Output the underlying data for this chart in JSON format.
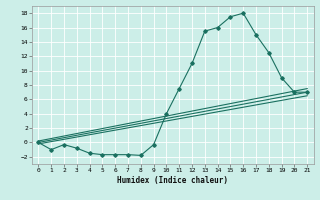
{
  "xlabel": "Humidex (Indice chaleur)",
  "bg_color": "#cceee8",
  "grid_color": "#ffffff",
  "line_color": "#1a7060",
  "xlim": [
    -0.5,
    21.5
  ],
  "ylim": [
    -3,
    19
  ],
  "xticks": [
    0,
    1,
    2,
    3,
    4,
    5,
    6,
    7,
    8,
    9,
    10,
    11,
    12,
    13,
    14,
    15,
    16,
    17,
    18,
    19,
    20,
    21
  ],
  "yticks": [
    -2,
    0,
    2,
    4,
    6,
    8,
    10,
    12,
    14,
    16,
    18
  ],
  "humidex_x": [
    0,
    1,
    2,
    3,
    4,
    5,
    6,
    7,
    8,
    9,
    10,
    11,
    12,
    13,
    14,
    15,
    16,
    17,
    18,
    19,
    20,
    21
  ],
  "humidex_y": [
    0,
    -1,
    -0.3,
    -0.8,
    -1.5,
    -1.7,
    -1.7,
    -1.7,
    -1.8,
    -0.3,
    4,
    7.5,
    11,
    15.5,
    16,
    17.5,
    18,
    15,
    12.5,
    9,
    7,
    7
  ],
  "line2_x": [
    0,
    21
  ],
  "line2_y": [
    0.2,
    7.5
  ],
  "line3_x": [
    0,
    21
  ],
  "line3_y": [
    0.0,
    7.0
  ],
  "line4_x": [
    0,
    21
  ],
  "line4_y": [
    -0.2,
    6.5
  ]
}
